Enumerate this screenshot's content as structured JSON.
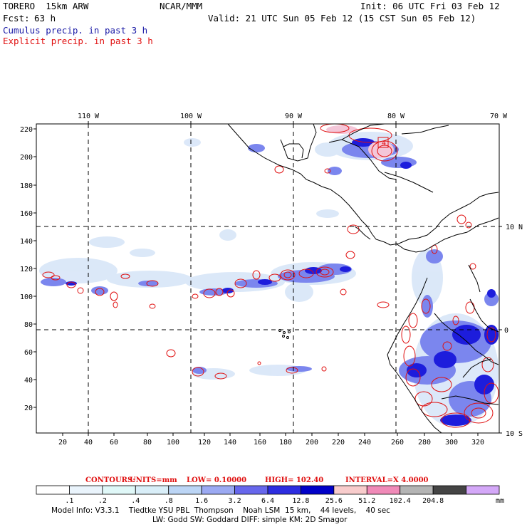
{
  "header": {
    "model": "TORERO  15km ARW",
    "center": "NCAR/MMM",
    "init": "Init: 06 UTC Fri 03 Feb 12",
    "fcst_label": "Fcst:",
    "fcst_value": "63 h",
    "valid": "Valid: 21 UTC Sun 05 Feb 12 (15 CST Sun 05 Feb 12)",
    "cumulus": "Cumulus precip. in past 3 h",
    "explicit": "Explicit precip. in past 3 h"
  },
  "colors": {
    "cumulus_text": "#1a1aa6",
    "explicit_text": "#e01010",
    "coastline": "#000000",
    "gridline": "#000000"
  },
  "map": {
    "lon_labels": [
      "110 W",
      "100 W",
      "90 W",
      "80 W",
      "70 W"
    ],
    "lat_labels": [
      "10 N",
      "0",
      "10 S"
    ],
    "x_ticks": [
      "20",
      "40",
      "60",
      "80",
      "100",
      "120",
      "140",
      "160",
      "180",
      "200",
      "220",
      "240",
      "260",
      "280",
      "300",
      "320"
    ],
    "y_ticks": [
      "220",
      "200",
      "180",
      "160",
      "140",
      "120",
      "100",
      "80",
      "60",
      "40",
      "20"
    ],
    "contour_labels": [
      "4"
    ]
  },
  "contours_line": {
    "label": "CONTOURS:",
    "units": "UNITS=mm",
    "low": "LOW= 0.10000",
    "high": "HIGH= 102.40",
    "interval": "INTERVAL=X  4.0000"
  },
  "colorbar": {
    "labels": [
      ".1",
      ".2",
      ".4",
      ".8",
      "1.6",
      "3.2",
      "6.4",
      "12.8",
      "25.6",
      "51.2",
      "102.4",
      "204.8"
    ],
    "unit": "mm",
    "colors": [
      "#ffffff",
      "#eaf4fc",
      "#e0f8f8",
      "#d9eef8",
      "#bcd5f5",
      "#9ba9f2",
      "#6767ec",
      "#2d2de0",
      "#0000c8",
      "#f8cccc",
      "#f08ab8",
      "#b4b4b4",
      "#444444",
      "#d4a8f8"
    ]
  },
  "footer": {
    "line1": "Model Info: V3.3.1    Tiedtke YSU PBL  Thompson    Noah LSM  15 km,    44 levels,    40 sec",
    "line2": "LW: Godd SW: Goddard DIFF: simple KM: 2D Smagor"
  }
}
